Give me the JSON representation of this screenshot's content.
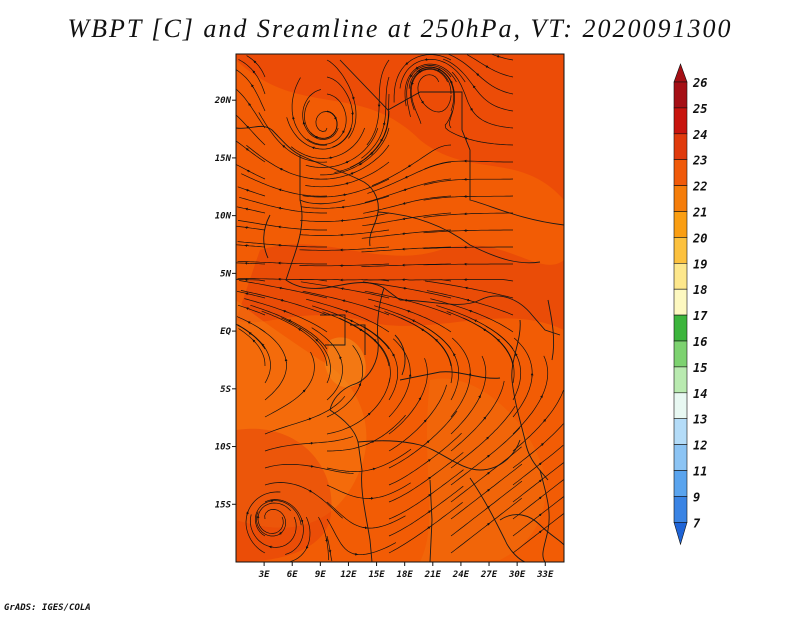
{
  "title": "WBPT [C] and Sreamline at 250hPa, VT: 2020091300",
  "credit": "GrADS: IGES/COLA",
  "map": {
    "lon_range": [
      0,
      35
    ],
    "lat_range": [
      -20,
      24
    ],
    "lon_ticks": [
      {
        "value": 3,
        "label": "3E"
      },
      {
        "value": 6,
        "label": "6E"
      },
      {
        "value": 9,
        "label": "9E"
      },
      {
        "value": 12,
        "label": "12E"
      },
      {
        "value": 15,
        "label": "15E"
      },
      {
        "value": 18,
        "label": "18E"
      },
      {
        "value": 21,
        "label": "21E"
      },
      {
        "value": 24,
        "label": "24E"
      },
      {
        "value": 27,
        "label": "27E"
      },
      {
        "value": 30,
        "label": "30E"
      },
      {
        "value": 33,
        "label": "33E"
      }
    ],
    "lat_ticks": [
      {
        "value": 20,
        "label": "20N"
      },
      {
        "value": 15,
        "label": "15N"
      },
      {
        "value": 10,
        "label": "10N"
      },
      {
        "value": 5,
        "label": "5N"
      },
      {
        "value": 0,
        "label": "EQ"
      },
      {
        "value": -5,
        "label": "5S"
      },
      {
        "value": -10,
        "label": "10S"
      },
      {
        "value": -15,
        "label": "15S"
      }
    ],
    "fill_colors": {
      "base": "#f25c05",
      "warm": "#e8400a",
      "cool": "#f57a12"
    }
  },
  "colorbar": {
    "levels": [
      {
        "label": "26",
        "color": "#a50f15"
      },
      {
        "label": "25",
        "color": "#c8140e"
      },
      {
        "label": "24",
        "color": "#e03a0c"
      },
      {
        "label": "23",
        "color": "#f05a0a"
      },
      {
        "label": "22",
        "color": "#f57d0a"
      },
      {
        "label": "21",
        "color": "#fa9e12"
      },
      {
        "label": "20",
        "color": "#fcc13e"
      },
      {
        "label": "19",
        "color": "#fde78c"
      },
      {
        "label": "18",
        "color": "#fdf8c0"
      },
      {
        "label": "17",
        "color": "#3cb53c"
      },
      {
        "label": "16",
        "color": "#7dd270"
      },
      {
        "label": "15",
        "color": "#b9eab0"
      },
      {
        "label": "14",
        "color": "#e8f8f2"
      },
      {
        "label": "13",
        "color": "#b4dcf8"
      },
      {
        "label": "12",
        "color": "#8cc4f4"
      },
      {
        "label": "11",
        "color": "#5aa4ee"
      },
      {
        "label": "9",
        "color": "#3a84e4"
      },
      {
        "label": "7",
        "color": "#1f64d6"
      }
    ]
  }
}
